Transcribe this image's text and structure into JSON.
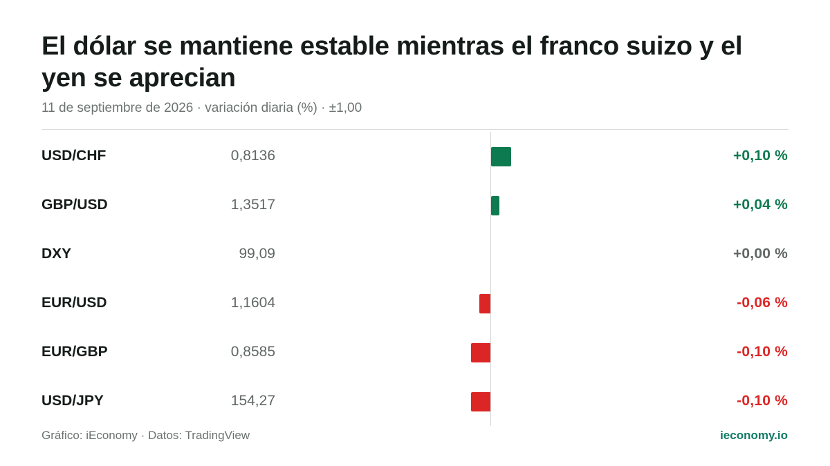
{
  "header": {
    "title": "El dólar se mantiene estable mientras el franco suizo y el yen se aprecian",
    "subtitle": "11 de septiembre de 2026 · variación diaria (%) · ±1,00"
  },
  "footer": {
    "source": "Gráfico: iEconomy · Datos: TradingView",
    "brand": "ieconomy.io"
  },
  "colors": {
    "positive": "#0e7a4f",
    "negative": "#dc2626",
    "neutral": "#5f6764"
  },
  "chart_data": {
    "type": "bar",
    "orientation": "horizontal",
    "categories": [
      "USD/CHF",
      "GBP/USD",
      "DXY",
      "EUR/USD",
      "EUR/GBP",
      "USD/JPY"
    ],
    "prices": [
      "0,8136",
      "1,3517",
      "99,09",
      "1,1604",
      "0,8585",
      "154,27"
    ],
    "values": [
      0.1,
      0.04,
      0.0,
      -0.06,
      -0.1,
      -0.1
    ],
    "value_labels": [
      "+0,10 %",
      "+0,04 %",
      "+0,00 %",
      "-0,06 %",
      "-0,10 %",
      "-0,10 %"
    ],
    "xlim": [
      -1.0,
      1.0
    ],
    "zero_line": true
  }
}
